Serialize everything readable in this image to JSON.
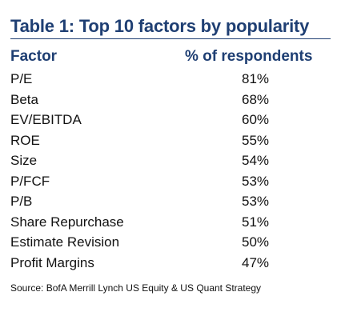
{
  "table": {
    "title": "Table 1: Top 10 factors by popularity",
    "header_factor": "Factor",
    "header_pct": "% of respondents",
    "rows": [
      {
        "factor": "P/E",
        "pct": "81%"
      },
      {
        "factor": "Beta",
        "pct": "68%"
      },
      {
        "factor": "EV/EBITDA",
        "pct": "60%"
      },
      {
        "factor": "ROE",
        "pct": "55%"
      },
      {
        "factor": "Size",
        "pct": "54%"
      },
      {
        "factor": "P/FCF",
        "pct": "53%"
      },
      {
        "factor": "P/B",
        "pct": "53%"
      },
      {
        "factor": "Share Repurchase",
        "pct": "51%"
      },
      {
        "factor": "Estimate Revision",
        "pct": "50%"
      },
      {
        "factor": "Profit Margins",
        "pct": "47%"
      }
    ],
    "source": "Source: BofA Merrill Lynch US Equity & US Quant Strategy"
  },
  "colors": {
    "title": "#1f3f73",
    "text": "#111111"
  }
}
